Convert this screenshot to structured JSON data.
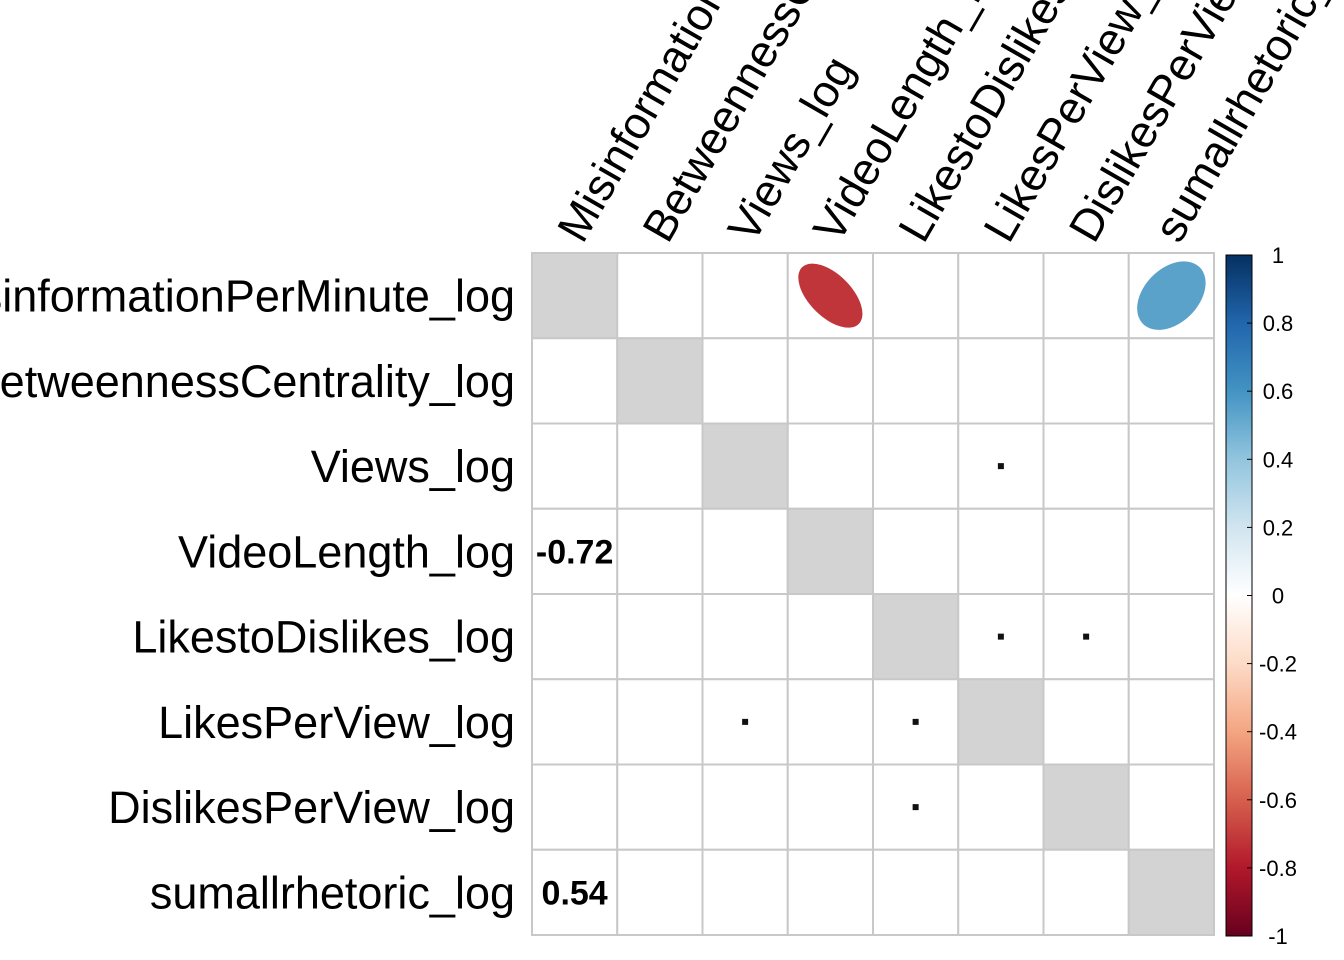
{
  "chart_data": {
    "type": "heatmap",
    "subtype": "correlation-matrix",
    "variables": [
      "MisinformationPerMinute_log",
      "BetweennessCentrality_log",
      "Views_log",
      "VideoLength_log",
      "LikestoDislikes_log",
      "LikesPerView_log",
      "DislikesPerView_log",
      "sumallrhetoric_log"
    ],
    "significant_correlations": [
      {
        "row": 3,
        "col": 0,
        "value": -0.72
      },
      {
        "row": 7,
        "col": 0,
        "value": 0.54
      }
    ],
    "small_marks": [
      {
        "row": 2,
        "col": 5
      },
      {
        "row": 4,
        "col": 5
      },
      {
        "row": 4,
        "col": 6
      },
      {
        "row": 5,
        "col": 2
      },
      {
        "row": 5,
        "col": 4
      },
      {
        "row": 6,
        "col": 4
      }
    ],
    "upper_display": "ellipse",
    "lower_display": "number",
    "diagonal": "grey",
    "legend": {
      "position": "right",
      "range": [
        -1,
        1
      ],
      "ticks": [
        "1",
        "0.8",
        "0.6",
        "0.4",
        "0.2",
        "0",
        "-0.2",
        "-0.4",
        "-0.6",
        "-0.8",
        "-1"
      ]
    },
    "colors": {
      "negative_strong": "#67001F",
      "negative_mid": "#D6604D",
      "neutral": "#FFFFFF",
      "positive_mid": "#4393C3",
      "positive_strong": "#053061",
      "diagonal": "#D3D3D3",
      "grid": "#C8C8C8"
    }
  }
}
